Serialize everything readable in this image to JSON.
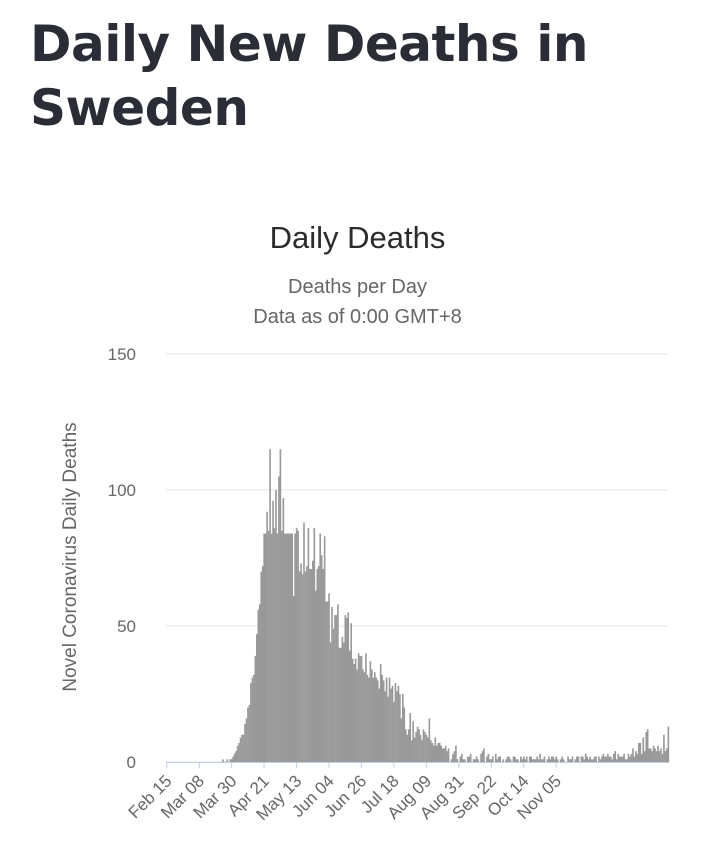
{
  "page": {
    "title": "Daily New Deaths in Sweden"
  },
  "chart_data": {
    "type": "bar",
    "title": "Daily Deaths",
    "subtitle_lines": [
      "Deaths per Day",
      "Data as of 0:00 GMT+8"
    ],
    "xlabel": "",
    "ylabel": "Novel Coronavirus Daily Deaths",
    "ylim": [
      0,
      150
    ],
    "yticks": [
      0,
      50,
      100,
      150
    ],
    "xticks": [
      "Feb 15",
      "Mar 08",
      "Mar 30",
      "Apr 21",
      "May 13",
      "Jun 04",
      "Jun 26",
      "Jul 18",
      "Aug 09",
      "Aug 31",
      "Sep 22",
      "Oct 14",
      "Nov 05"
    ],
    "start_date": "Feb 15",
    "bar_color": "#999999",
    "grid_color": "#e6e6e6",
    "values": [
      0,
      0,
      0,
      0,
      0,
      0,
      0,
      0,
      0,
      0,
      0,
      0,
      0,
      0,
      0,
      0,
      0,
      0,
      0,
      0,
      0,
      0,
      0,
      0,
      0,
      0,
      0,
      0,
      0,
      0,
      0,
      0,
      0,
      0,
      0,
      0,
      0,
      0,
      1,
      0,
      0,
      1,
      0,
      1,
      1,
      2,
      3,
      4,
      6,
      7,
      9,
      10,
      10,
      14,
      16,
      20,
      21,
      29,
      31,
      32,
      39,
      47,
      56,
      58,
      70,
      72,
      84,
      84,
      92,
      85,
      115,
      84,
      96,
      86,
      100,
      84,
      105,
      115,
      85,
      97,
      84,
      84,
      84,
      84,
      84,
      84,
      61,
      84,
      86,
      85,
      70,
      73,
      69,
      88,
      70,
      72,
      86,
      71,
      71,
      74,
      86,
      63,
      71,
      72,
      84,
      76,
      71,
      83,
      59,
      59,
      62,
      44,
      57,
      49,
      54,
      54,
      58,
      42,
      42,
      46,
      44,
      54,
      53,
      55,
      41,
      51,
      38,
      36,
      38,
      34,
      40,
      39,
      39,
      34,
      33,
      40,
      32,
      31,
      37,
      34,
      31,
      33,
      31,
      30,
      27,
      36,
      32,
      30,
      26,
      31,
      24,
      31,
      27,
      28,
      22,
      29,
      26,
      28,
      25,
      16,
      25,
      20,
      12,
      10,
      12,
      18,
      8,
      15,
      9,
      11,
      13,
      12,
      10,
      8,
      12,
      11,
      10,
      9,
      16,
      8,
      7,
      6,
      9,
      6,
      7,
      7,
      6,
      5,
      5,
      6,
      4,
      5,
      0,
      1,
      3,
      4,
      6,
      1,
      0,
      2,
      3,
      1,
      1,
      0,
      2,
      2,
      3,
      0,
      1,
      1,
      2,
      1,
      0,
      3,
      4,
      5,
      0,
      2,
      3,
      1,
      1,
      2,
      0,
      3,
      1,
      2,
      2,
      0,
      1,
      0,
      1,
      2,
      2,
      1,
      0,
      2,
      2,
      1,
      1,
      0,
      2,
      1,
      2,
      1,
      2,
      0,
      2,
      2,
      1,
      1,
      1,
      2,
      1,
      3,
      1,
      1,
      2,
      0,
      1,
      2,
      1,
      2,
      2,
      1,
      2,
      1,
      0,
      1,
      2,
      1,
      0,
      0,
      2,
      1,
      1,
      2,
      0,
      1,
      2,
      2,
      0,
      2,
      2,
      1,
      3,
      2,
      1,
      2,
      1,
      1,
      2,
      2,
      0,
      2,
      1,
      2,
      3,
      2,
      2,
      3,
      2,
      2,
      1,
      3,
      4,
      1,
      3,
      2,
      2,
      2,
      3,
      1,
      1,
      3,
      2,
      3,
      5,
      2,
      4,
      3,
      7,
      7,
      3,
      9,
      4,
      11,
      12,
      5,
      5,
      4,
      6,
      5,
      4,
      6,
      4,
      5,
      3,
      10,
      4,
      5,
      13
    ]
  }
}
